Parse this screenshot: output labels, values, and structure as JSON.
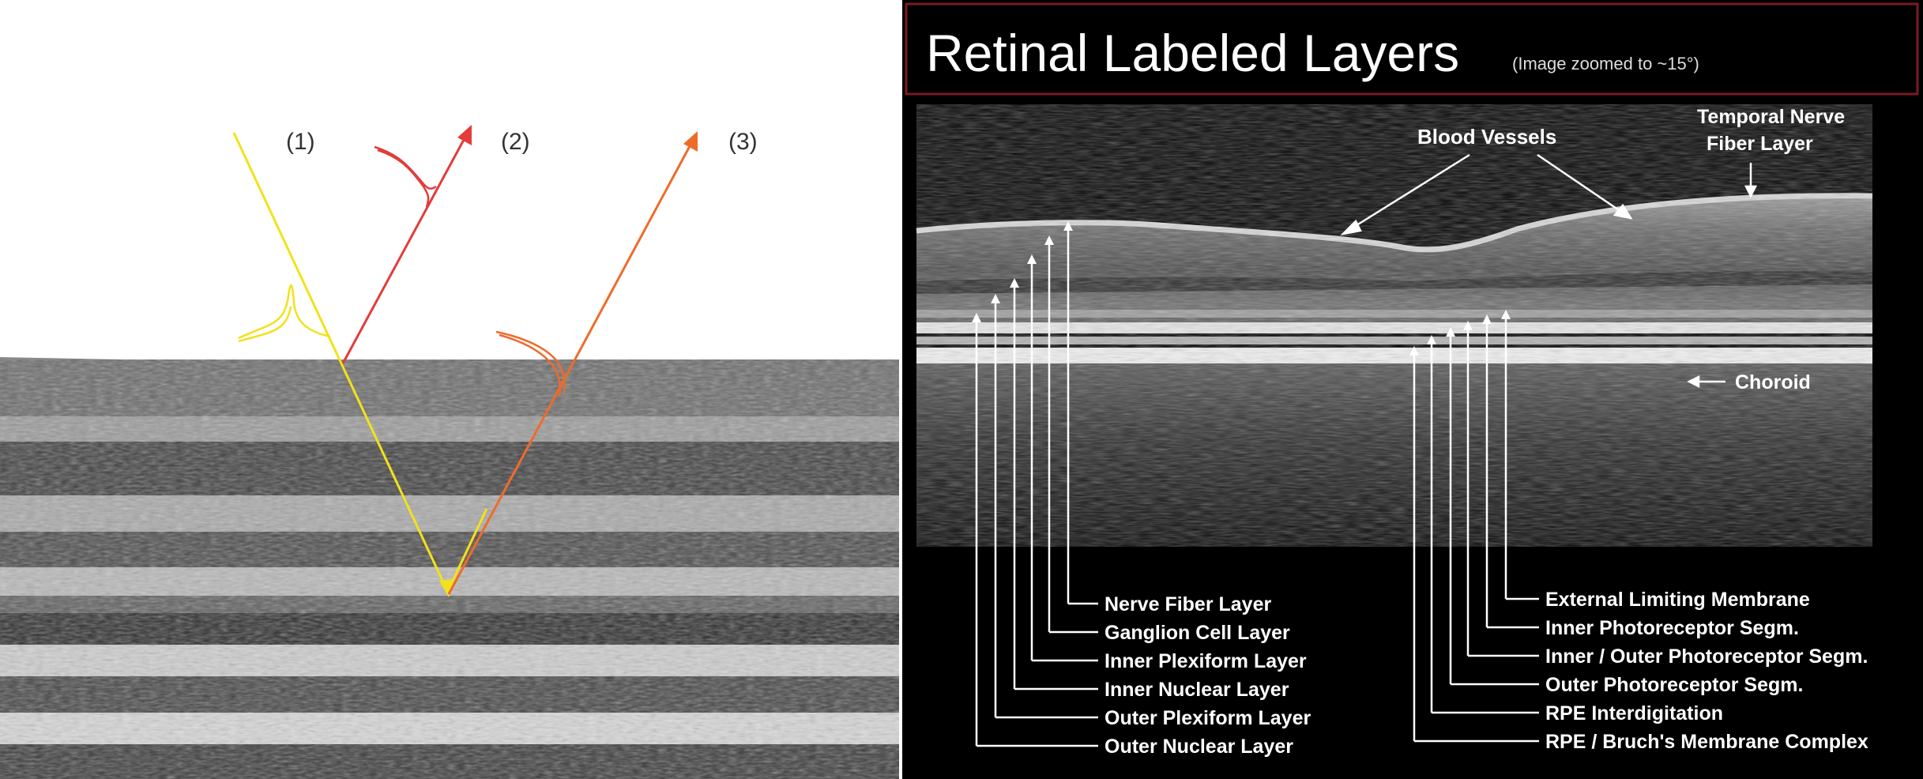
{
  "left_panel": {
    "ray_labels": [
      "(1)",
      "(2)",
      "(3)"
    ],
    "colors": {
      "ray1": "#f2e21a",
      "ray2": "#e43b3b",
      "ray3": "#ef6b2a"
    }
  },
  "right_panel": {
    "title": "Retinal Labeled Layers",
    "subtitle": "(Image zoomed to ~15°)",
    "top_labels": {
      "blood_vessels": "Blood Vessels",
      "temporal_line1": "Temporal Nerve",
      "temporal_line2": "Fiber Layer",
      "choroid": "Choroid"
    },
    "left_layers": [
      "Nerve Fiber Layer",
      "Ganglion Cell Layer",
      "Inner Plexiform Layer",
      "Inner Nuclear Layer",
      "Outer Plexiform Layer",
      "Outer Nuclear Layer"
    ],
    "right_layers": [
      "External Limiting Membrane",
      "Inner Photoreceptor Segm.",
      "Inner / Outer Photoreceptor Segm.",
      "Outer Photoreceptor Segm.",
      "RPE Interdigitation",
      "RPE / Bruch's Membrane Complex"
    ],
    "colors": {
      "title_border": "#7a1a24",
      "background": "#000000",
      "text": "#ffffff"
    }
  }
}
